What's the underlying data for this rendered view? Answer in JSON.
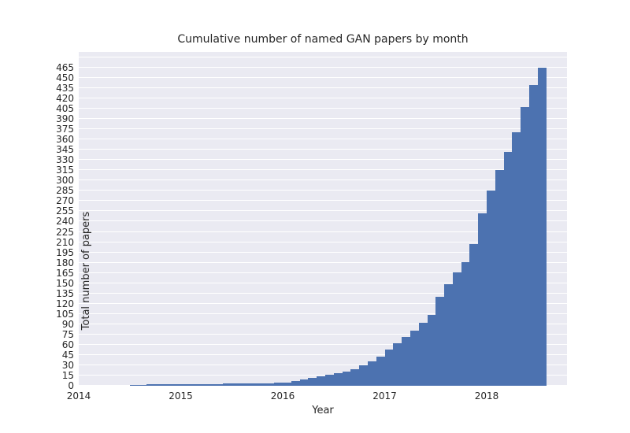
{
  "chart_data": {
    "type": "bar",
    "title": "Cumulative number of named GAN papers by month",
    "xlabel": "Year",
    "ylabel": "Total number of papers",
    "x_tick_labels": [
      "2014",
      "2015",
      "2016",
      "2017",
      "2018"
    ],
    "x_tick_values": [
      2014,
      2015,
      2016,
      2017,
      2018
    ],
    "y_tick_labels": [
      "0",
      "15",
      "30",
      "45",
      "60",
      "75",
      "90",
      "105",
      "120",
      "135",
      "150",
      "165",
      "180",
      "195",
      "210",
      "225",
      "240",
      "255",
      "270",
      "285",
      "300",
      "315",
      "330",
      "345",
      "360",
      "375",
      "390",
      "405",
      "420",
      "435",
      "450",
      "465"
    ],
    "y_tick_values": [
      0,
      15,
      30,
      45,
      60,
      75,
      90,
      105,
      120,
      135,
      150,
      165,
      180,
      195,
      210,
      225,
      240,
      255,
      270,
      285,
      300,
      315,
      330,
      345,
      360,
      375,
      390,
      405,
      420,
      435,
      450,
      465
    ],
    "ylim": [
      0,
      488
    ],
    "xlim": [
      2014.0,
      2018.787
    ],
    "grid": true,
    "legend": null,
    "bar_months": [
      "2014-07",
      "2014-08",
      "2014-09",
      "2014-10",
      "2014-11",
      "2014-12",
      "2015-01",
      "2015-02",
      "2015-03",
      "2015-04",
      "2015-05",
      "2015-06",
      "2015-07",
      "2015-08",
      "2015-09",
      "2015-10",
      "2015-11",
      "2015-12",
      "2016-01",
      "2016-02",
      "2016-03",
      "2016-04",
      "2016-05",
      "2016-06",
      "2016-07",
      "2016-08",
      "2016-09",
      "2016-10",
      "2016-11",
      "2016-12",
      "2017-01",
      "2017-02",
      "2017-03",
      "2017-04",
      "2017-05",
      "2017-06",
      "2017-07",
      "2017-08",
      "2017-09",
      "2017-10",
      "2017-11",
      "2017-12",
      "2018-01",
      "2018-02",
      "2018-03",
      "2018-04",
      "2018-05",
      "2018-06",
      "2018-07"
    ],
    "cumulative_values": [
      1,
      1,
      2,
      2,
      2,
      2,
      2,
      2,
      2,
      2,
      2,
      3,
      3,
      3,
      3,
      3,
      4,
      5,
      5,
      7,
      9,
      11,
      14,
      16,
      18,
      21,
      24,
      30,
      36,
      43,
      53,
      62,
      71,
      81,
      92,
      104,
      130,
      148,
      166,
      181,
      207,
      252,
      285,
      315,
      342,
      371,
      408,
      440,
      465
    ],
    "colors": {
      "bar": "#4c72b0",
      "plot_background": "#eaeaf2",
      "gridline": "#ffffff",
      "text": "#262626",
      "page_background": "#ffffff"
    }
  }
}
